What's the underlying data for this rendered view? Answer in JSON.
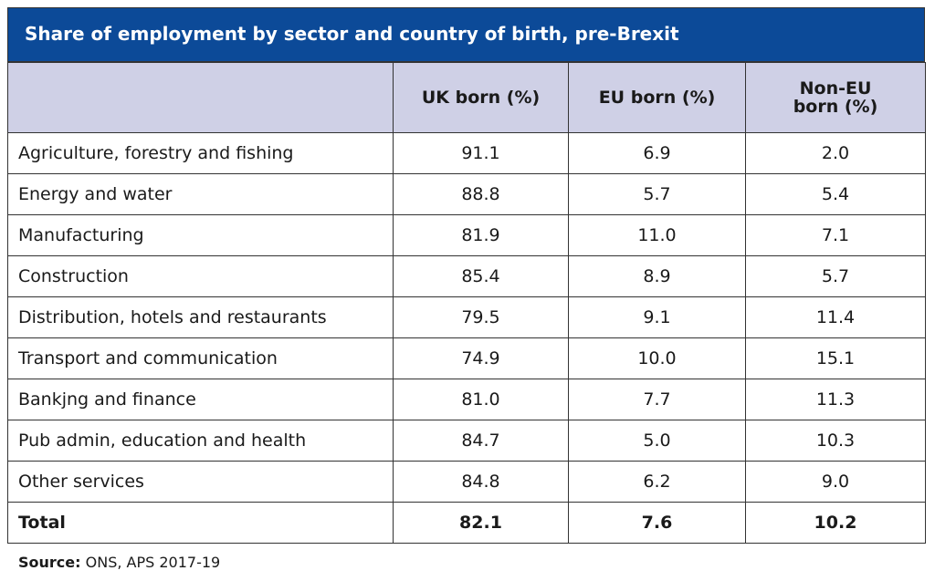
{
  "title": "Share of employment by sector and country of birth, pre-Brexit",
  "table": {
    "headers": [
      "",
      "UK born (%)",
      "EU born (%)",
      "Non-EU born (%)"
    ],
    "rows": [
      [
        "Agriculture, forestry and fishing",
        "91.1",
        "6.9",
        "2.0"
      ],
      [
        "Energy and water",
        "88.8",
        "5.7",
        "5.4"
      ],
      [
        "Manufacturing",
        "81.9",
        "11.0",
        "7.1"
      ],
      [
        "Construction",
        "85.4",
        "8.9",
        "5.7"
      ],
      [
        "Distribution, hotels and restaurants",
        "79.5",
        "9.1",
        "11.4"
      ],
      [
        "Transport and communication",
        "74.9",
        "10.0",
        "15.1"
      ],
      [
        "Bankjng and finance",
        "81.0",
        "7.7",
        "11.3"
      ],
      [
        "Pub admin, education and health",
        "84.7",
        "5.0",
        "10.3"
      ],
      [
        "Other services",
        "84.8",
        "6.2",
        "9.0"
      ]
    ],
    "total": [
      "Total",
      "82.1",
      "7.6",
      "10.2"
    ]
  },
  "source": {
    "label": "Source:",
    "text": "ONS, APS 2017-19"
  }
}
